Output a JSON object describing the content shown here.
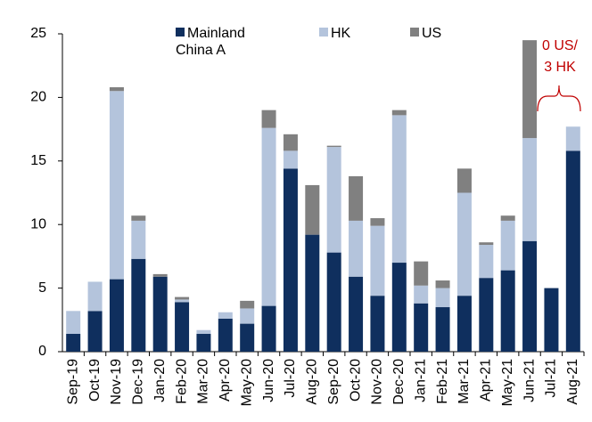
{
  "chart_data": {
    "type": "stacked_bar",
    "categories": [
      "Sep-19",
      "Oct-19",
      "Nov-19",
      "Dec-19",
      "Jan-20",
      "Feb-20",
      "Mar-20",
      "Apr-20",
      "May-20",
      "Jun-20",
      "Jul-20",
      "Aug-20",
      "Sep-20",
      "Oct-20",
      "Nov-20",
      "Dec-20",
      "Jan-21",
      "Feb-21",
      "Mar-21",
      "Apr-21",
      "May-21",
      "Jun-21",
      "Jul-21",
      "Aug-21"
    ],
    "series": [
      {
        "name": "Mainland China A",
        "color": "#0f2f5e",
        "values": [
          1.4,
          3.2,
          5.7,
          7.3,
          5.9,
          3.9,
          1.4,
          2.6,
          2.2,
          3.6,
          14.4,
          9.2,
          7.8,
          5.9,
          4.4,
          7.0,
          3.8,
          3.5,
          4.4,
          5.8,
          6.4,
          8.7,
          5.0,
          15.8
        ]
      },
      {
        "name": "HK",
        "color": "#b4c4dc",
        "values": [
          1.8,
          2.3,
          14.8,
          3.0,
          0,
          0.2,
          0.3,
          0.5,
          1.2,
          14.0,
          1.4,
          0,
          8.3,
          4.4,
          5.5,
          11.6,
          1.4,
          1.5,
          8.1,
          2.6,
          3.9,
          8.1,
          0,
          1.9
        ]
      },
      {
        "name": "US",
        "color": "#808080",
        "values": [
          0,
          0,
          0.3,
          0.4,
          0.2,
          0.2,
          0,
          0,
          0.6,
          1.4,
          1.3,
          3.9,
          0.1,
          3.5,
          0.6,
          0.4,
          1.9,
          0.6,
          1.9,
          0.2,
          0.4,
          7.7,
          0,
          0
        ]
      }
    ],
    "ylim": [
      0,
      25
    ],
    "yticks": [
      0,
      5,
      10,
      15,
      20,
      25
    ],
    "annotation": [
      "0 US/",
      "3 HK"
    ],
    "annotation_color": "#c00000"
  }
}
